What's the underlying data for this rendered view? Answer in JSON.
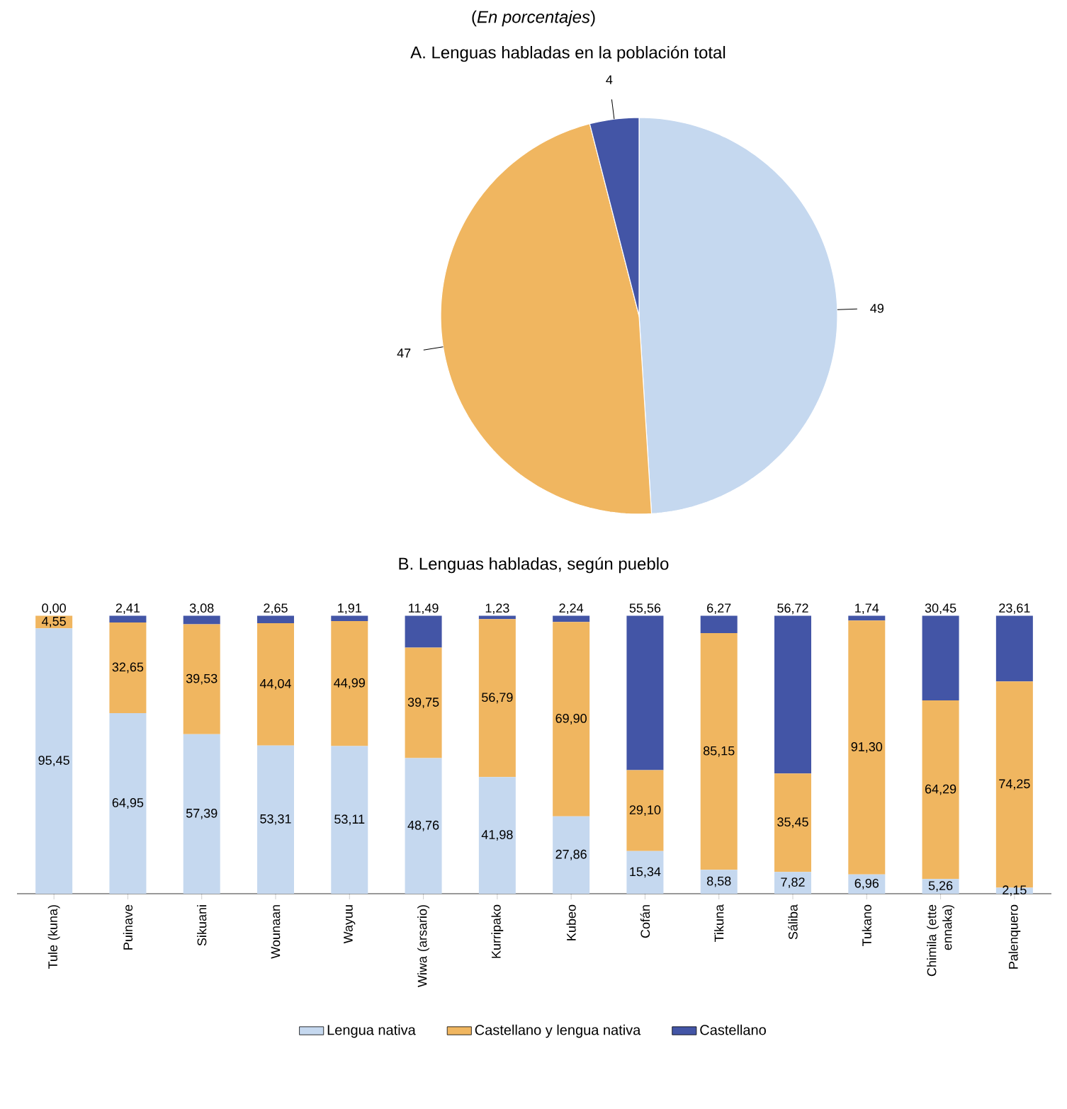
{
  "chart_data": [
    {
      "type": "pie",
      "subtitle": "(*En porcentajes*)",
      "title": "A. Lenguas habladas en la población total",
      "categories": [
        null,
        null,
        null
      ],
      "values": [
        49,
        47,
        4
      ],
      "colors": [
        "#c5d8ef",
        "#f0b660",
        "#4355a6"
      ],
      "data_labels": true
    },
    {
      "type": "bar",
      "title": "B. Lenguas habladas, según pueblo",
      "stacked": true,
      "legend": "bottom",
      "categories": [
        "Tule (kuna)",
        "Puinave",
        "Sikuani",
        "Wounaan",
        "Wayuu",
        "Wiwa (arsario)",
        "Kurripako",
        "Kubeo",
        "Cofán",
        "Tikuna",
        "Sáliba",
        "Tukano",
        "Chimila (ette ennaka)",
        "Palenquero"
      ],
      "series": [
        {
          "name": "Lengua nativa",
          "color": "#c5d8ef",
          "values": [
            95.45,
            64.95,
            57.39,
            53.31,
            53.11,
            48.76,
            41.98,
            27.86,
            15.34,
            8.58,
            7.82,
            6.96,
            5.26,
            2.15
          ],
          "value_labels": [
            "95,45",
            "64,95",
            "57,39",
            "53,31",
            "53,11",
            "48,76",
            "41,98",
            "27,86",
            "15,34",
            "8,58",
            "7,82",
            "6,96",
            "5,26",
            "2,15"
          ]
        },
        {
          "name": "Castellano y lengua nativa",
          "color": "#f0b660",
          "values": [
            4.55,
            32.65,
            39.53,
            44.04,
            44.99,
            39.75,
            56.79,
            69.9,
            29.1,
            85.15,
            35.45,
            91.3,
            64.29,
            74.25
          ],
          "value_labels": [
            "4,55",
            "32,65",
            "39,53",
            "44,04",
            "44,99",
            "39,75",
            "56,79",
            "69,90",
            "29,10",
            "85,15",
            "35,45",
            "91,30",
            "64,29",
            "74,25"
          ]
        },
        {
          "name": "Castellano",
          "color": "#4355a6",
          "values": [
            0.0,
            2.41,
            3.08,
            2.65,
            1.91,
            11.49,
            1.23,
            2.24,
            55.56,
            6.27,
            56.72,
            1.74,
            30.45,
            23.61
          ],
          "value_labels": [
            "0,00",
            "2,41",
            "3,08",
            "2,65",
            "1,91",
            "11,49",
            "1,23",
            "2,24",
            "55,56",
            "6,27",
            "56,72",
            "1,74",
            "30,45",
            "23,61"
          ]
        }
      ]
    }
  ]
}
